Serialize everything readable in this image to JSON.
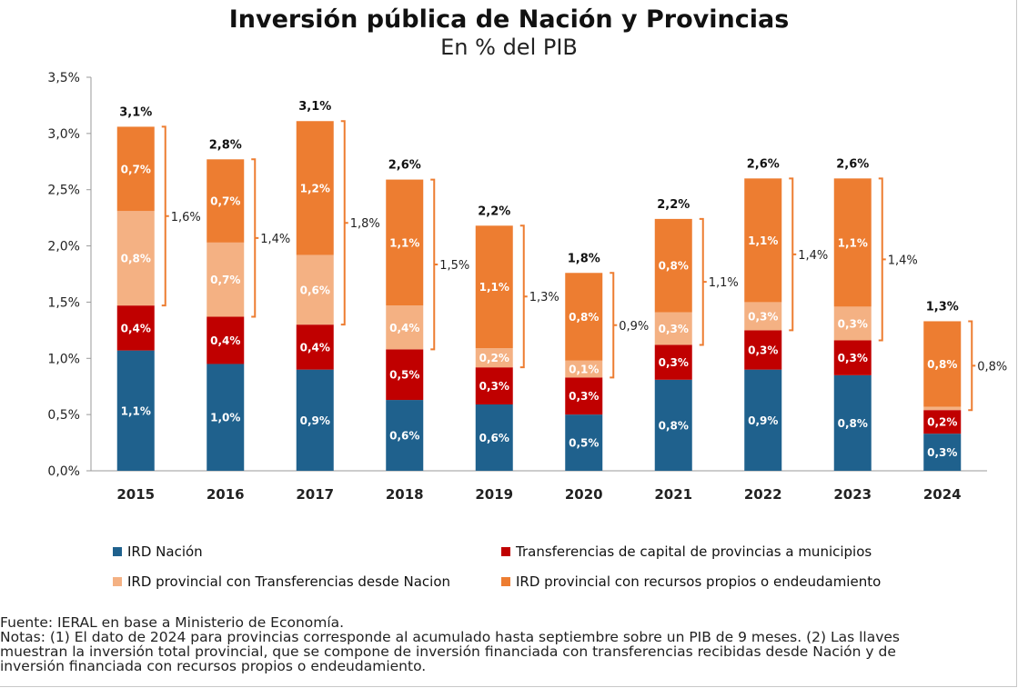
{
  "chart_data": {
    "type": "bar",
    "stacked": true,
    "title": "Inversión pública de Nación y Provincias",
    "subtitle": "En % del PIB",
    "categories": [
      "2015",
      "2016",
      "2017",
      "2018",
      "2019",
      "2020",
      "2021",
      "2022",
      "2023",
      "2024"
    ],
    "y_ticks": [
      "0,0%",
      "0,5%",
      "1,0%",
      "1,5%",
      "2,0%",
      "2,5%",
      "3,0%",
      "3,5%"
    ],
    "ylim": [
      0,
      3.5
    ],
    "series": [
      {
        "name": "IRD Nación",
        "color": "#1f618d",
        "values": [
          1.07,
          0.95,
          0.9,
          0.63,
          0.59,
          0.5,
          0.81,
          0.9,
          0.85,
          0.33
        ],
        "labels": [
          "1,1%",
          "1,0%",
          "0,9%",
          "0,6%",
          "0,6%",
          "0,5%",
          "0,8%",
          "0,9%",
          "0,8%",
          "0,3%"
        ]
      },
      {
        "name": "Transferencias de capital de provincias a municipios",
        "color": "#c00000",
        "values": [
          0.4,
          0.42,
          0.4,
          0.45,
          0.33,
          0.33,
          0.31,
          0.35,
          0.31,
          0.21
        ],
        "labels": [
          "0,4%",
          "0,4%",
          "0,4%",
          "0,5%",
          "0,3%",
          "0,3%",
          "0,3%",
          "0,3%",
          "0,3%",
          "0,2%"
        ]
      },
      {
        "name": "IRD provincial con Transferencias desde Nacion",
        "color": "#f4b183",
        "values": [
          0.84,
          0.66,
          0.62,
          0.39,
          0.17,
          0.15,
          0.29,
          0.25,
          0.3,
          0.03
        ],
        "labels": [
          "0,8%",
          "0,7%",
          "0,6%",
          "0,4%",
          "0,2%",
          "0,1%",
          "0,3%",
          "0,3%",
          "0,3%",
          ""
        ]
      },
      {
        "name": "IRD provincial con recursos propios o endeudamiento",
        "color": "#ed7d31",
        "values": [
          0.75,
          0.74,
          1.19,
          1.12,
          1.09,
          0.78,
          0.83,
          1.1,
          1.14,
          0.76
        ],
        "labels": [
          "0,7%",
          "0,7%",
          "1,2%",
          "1,1%",
          "1,1%",
          "0,8%",
          "0,8%",
          "1,1%",
          "1,1%",
          "0,8%"
        ]
      }
    ],
    "totals": [
      "3,1%",
      "2,8%",
      "3,1%",
      "2,6%",
      "2,2%",
      "1,8%",
      "2,2%",
      "2,6%",
      "2,6%",
      "1,3%"
    ],
    "brackets": [
      "1,6%",
      "1,4%",
      "1,8%",
      "1,5%",
      "1,3%",
      "0,9%",
      "1,1%",
      "1,4%",
      "1,4%",
      "0,8%"
    ]
  },
  "legend": [
    {
      "label": "IRD Nación",
      "color": "#1f618d"
    },
    {
      "label": "Transferencias de capital de provincias a municipios",
      "color": "#c00000"
    },
    {
      "label": "IRD provincial con Transferencias desde Nacion",
      "color": "#f4b183"
    },
    {
      "label": "IRD provincial con recursos propios o endeudamiento",
      "color": "#ed7d31"
    }
  ],
  "notes": {
    "line1": "Fuente: IERAL en base a Ministerio de Economía.",
    "line2": "Notas: (1) El dato de 2024 para provincias corresponde al acumulado hasta septiembre sobre un PIB de 9 meses. (2) Las llaves",
    "line3": "muestran la inversión total provincial, que se compone de inversión financiada con transferencias recibidas desde Nación y de",
    "line4": "inversión financiada con recursos propios o endeudamiento."
  }
}
